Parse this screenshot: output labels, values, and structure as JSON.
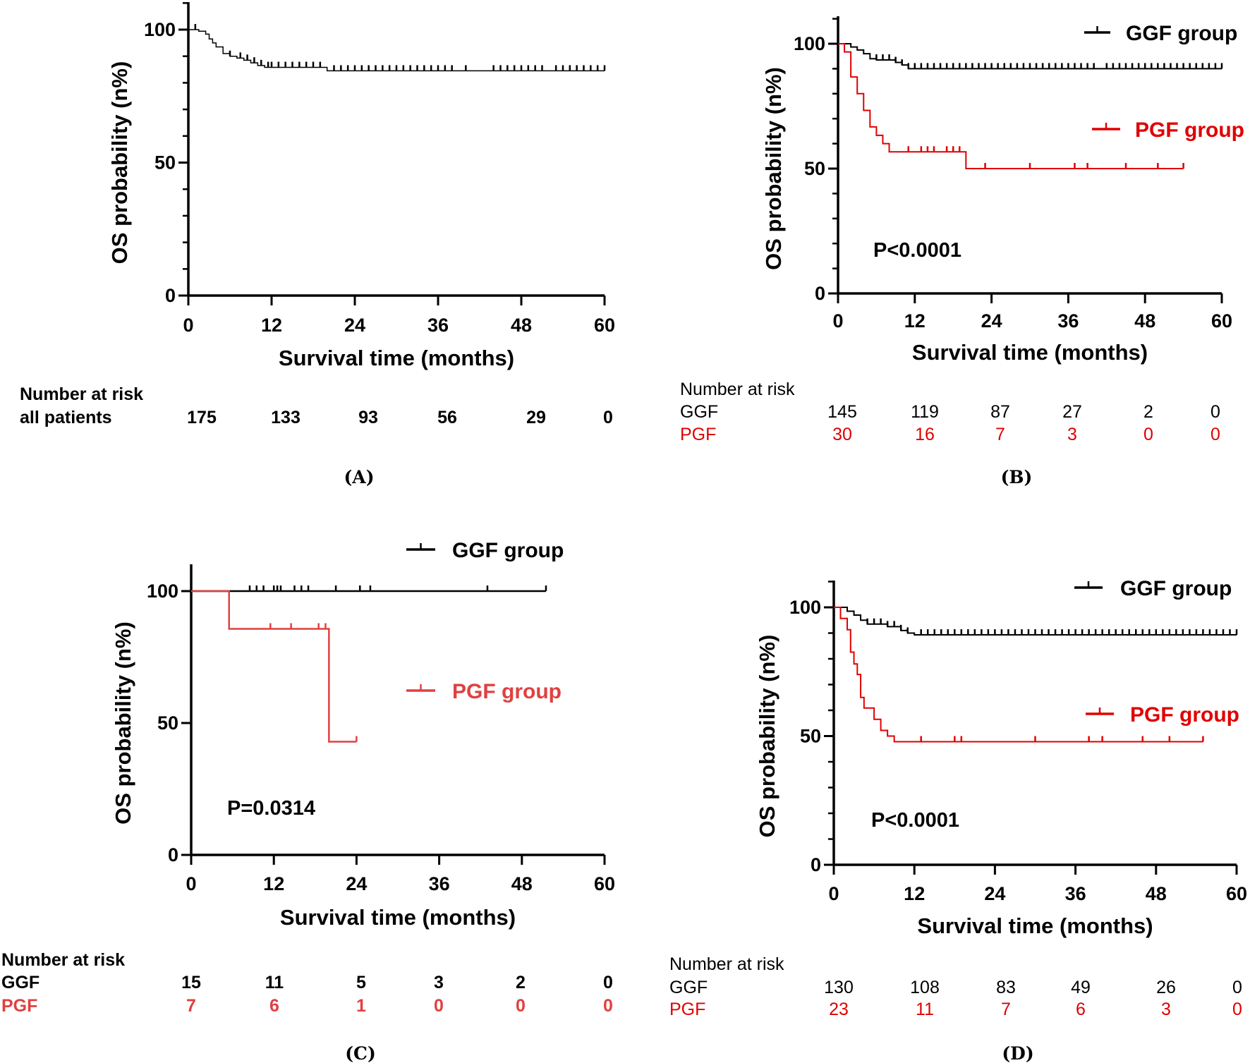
{
  "chart_data": [
    {
      "type": "line",
      "panel": "(A)",
      "xlabel": "Survival time (months)",
      "ylabel": "OS probability (n%)",
      "xlim": [
        0,
        60
      ],
      "ylim": [
        0,
        100
      ],
      "xticks": [
        "0",
        "12",
        "24",
        "36",
        "48",
        "60"
      ],
      "yticks": [
        "0",
        "50",
        "100"
      ],
      "series": [
        {
          "name": "all patients",
          "color": "#000000",
          "end": 60,
          "steps": [
            [
              0,
              100
            ],
            [
              1.5,
              99.4
            ],
            [
              2.5,
              98.3
            ],
            [
              3,
              96.5
            ],
            [
              3.5,
              95
            ],
            [
              4,
              93.5
            ],
            [
              5,
              91
            ],
            [
              6,
              90
            ],
            [
              7,
              89.3
            ],
            [
              8,
              88.5
            ],
            [
              9,
              87.5
            ],
            [
              10,
              86.5
            ],
            [
              11,
              85.8
            ],
            [
              20,
              84.5
            ]
          ],
          "censored": [
            1,
            6,
            7.5,
            8.5,
            9.5,
            10.5,
            11.5,
            12,
            13,
            14,
            15,
            16,
            17,
            18,
            19,
            21,
            22,
            23,
            24,
            25,
            26,
            27,
            28,
            29,
            30,
            31,
            32,
            33,
            34,
            35,
            36,
            37,
            38,
            40,
            44,
            45,
            46,
            47,
            48,
            49,
            50,
            51,
            53,
            54,
            55,
            56,
            57,
            58,
            59,
            60
          ]
        }
      ],
      "risk_table": {
        "title": "Number at risk",
        "rows": [
          {
            "label": "all patients",
            "color": "#000000",
            "values": [
              "175",
              "133",
              "93",
              "56",
              "29",
              "0"
            ]
          }
        ]
      }
    },
    {
      "type": "line",
      "panel": "(B)",
      "xlabel": "Survival time (months)",
      "ylabel": "OS probability (n%)",
      "xlim": [
        0,
        60
      ],
      "ylim": [
        0,
        100
      ],
      "xticks": [
        "0",
        "12",
        "24",
        "36",
        "48",
        "60"
      ],
      "yticks": [
        "0",
        "50",
        "100"
      ],
      "p_value": "P<0.0001",
      "series": [
        {
          "name": "GGF group",
          "color": "#000000",
          "end": 60,
          "steps": [
            [
              0,
              100
            ],
            [
              2,
              98.7
            ],
            [
              3,
              97.5
            ],
            [
              4,
              96
            ],
            [
              5,
              94
            ],
            [
              6,
              93.5
            ],
            [
              9,
              92.5
            ],
            [
              10,
              91.5
            ],
            [
              11,
              90
            ]
          ],
          "censored": [
            6,
            7,
            8,
            9,
            10,
            11,
            12,
            13,
            14,
            15,
            16,
            17,
            18,
            19,
            20,
            21,
            22,
            23,
            24,
            25,
            26,
            27,
            28,
            29,
            30,
            31,
            32,
            33,
            34,
            35,
            36,
            37,
            38,
            39,
            40,
            42,
            43,
            44,
            45,
            46,
            47,
            48,
            49,
            50,
            51,
            52,
            53,
            54,
            55,
            56,
            57,
            58,
            59,
            60
          ]
        },
        {
          "name": "PGF group",
          "color": "#e00000",
          "end": 54,
          "steps": [
            [
              0,
              100
            ],
            [
              1,
              96.7
            ],
            [
              2,
              86.7
            ],
            [
              3,
              80
            ],
            [
              4,
              73.3
            ],
            [
              5,
              66.7
            ],
            [
              6,
              63.3
            ],
            [
              7,
              60
            ],
            [
              8,
              56.7
            ],
            [
              20,
              50
            ]
          ],
          "censored": [
            11,
            13,
            14,
            15,
            17,
            18,
            19,
            23,
            30,
            37,
            39,
            45,
            50,
            54
          ]
        }
      ],
      "risk_table": {
        "title": "Number at risk",
        "rows": [
          {
            "label": "GGF",
            "color": "#000000",
            "values": [
              "145",
              "119",
              "87",
              "27",
              "2",
              "0"
            ]
          },
          {
            "label": "PGF",
            "color": "#e00000",
            "values": [
              "30",
              "16",
              "7",
              "3",
              "0",
              "0"
            ]
          }
        ]
      }
    },
    {
      "type": "line",
      "panel": "(C)",
      "xlabel": "Survival time (months)",
      "ylabel": "OS probability (n%)",
      "xlim": [
        0,
        60
      ],
      "ylim": [
        0,
        100
      ],
      "xticks": [
        "0",
        "12",
        "24",
        "36",
        "48",
        "60"
      ],
      "yticks": [
        "0",
        "50",
        "100"
      ],
      "p_value": "P=0.0314",
      "series": [
        {
          "name": "GGF group",
          "color": "#000000",
          "end": 51.5,
          "steps": [
            [
              0,
              100
            ]
          ],
          "censored": [
            8.5,
            9.5,
            10.5,
            12,
            12.5,
            13,
            15,
            16,
            17,
            21,
            24.5,
            26,
            43,
            51.5
          ]
        },
        {
          "name": "PGF group",
          "color": "#e04040",
          "end": 24,
          "steps": [
            [
              0,
              100
            ],
            [
              5.5,
              85.7
            ],
            [
              20,
              42.9
            ]
          ],
          "censored": [
            11.5,
            14.5,
            18.5,
            19.5,
            24
          ]
        }
      ],
      "risk_table": {
        "title": "Number at risk",
        "rows": [
          {
            "label": "GGF",
            "color": "#000000",
            "values": [
              "15",
              "11",
              "5",
              "3",
              "2",
              "0"
            ]
          },
          {
            "label": "PGF",
            "color": "#e04040",
            "values": [
              "7",
              "6",
              "1",
              "0",
              "0",
              "0"
            ]
          }
        ]
      }
    },
    {
      "type": "line",
      "panel": "(D)",
      "xlabel": "Survival time (months)",
      "ylabel": "OS probability (n%)",
      "xlim": [
        0,
        60
      ],
      "ylim": [
        0,
        100
      ],
      "xticks": [
        "0",
        "12",
        "24",
        "36",
        "48",
        "60"
      ],
      "yticks": [
        "0",
        "50",
        "100"
      ],
      "p_value": "P<0.0001",
      "series": [
        {
          "name": "GGF group",
          "color": "#000000",
          "end": 60,
          "steps": [
            [
              0,
              100
            ],
            [
              2,
              98.5
            ],
            [
              3,
              97
            ],
            [
              4,
              95
            ],
            [
              5,
              93.5
            ],
            [
              8,
              92.5
            ],
            [
              10,
              91
            ],
            [
              11,
              90
            ],
            [
              12,
              89.3
            ]
          ],
          "censored": [
            5,
            6,
            7,
            8,
            9,
            10,
            11,
            13,
            14,
            15,
            16,
            17,
            18,
            19,
            20,
            21,
            22,
            23,
            24,
            25,
            26,
            27,
            28,
            29,
            30,
            31,
            32,
            33,
            34,
            35,
            36,
            37,
            38,
            39,
            40,
            41,
            42,
            43,
            44,
            45,
            46,
            47,
            48,
            49,
            50,
            51,
            52,
            53,
            54,
            55,
            56,
            57,
            58,
            59,
            60
          ]
        },
        {
          "name": "PGF group",
          "color": "#e00000",
          "end": 55,
          "steps": [
            [
              0,
              100
            ],
            [
              1,
              95.7
            ],
            [
              2,
              91.3
            ],
            [
              2.5,
              82.6
            ],
            [
              3,
              78
            ],
            [
              3.5,
              73.9
            ],
            [
              4,
              65
            ],
            [
              4.5,
              60.9
            ],
            [
              6,
              56.5
            ],
            [
              7,
              52.2
            ],
            [
              8,
              50
            ],
            [
              9,
              47.8
            ]
          ],
          "censored": [
            13,
            18,
            19,
            30,
            38,
            40,
            46,
            50,
            55
          ]
        }
      ],
      "risk_table": {
        "title": "Number at risk",
        "rows": [
          {
            "label": "GGF",
            "color": "#000000",
            "values": [
              "130",
              "108",
              "83",
              "49",
              "26",
              "0"
            ]
          },
          {
            "label": "PGF",
            "color": "#e00000",
            "values": [
              "23",
              "11",
              "7",
              "6",
              "3",
              "0"
            ]
          }
        ]
      }
    }
  ]
}
